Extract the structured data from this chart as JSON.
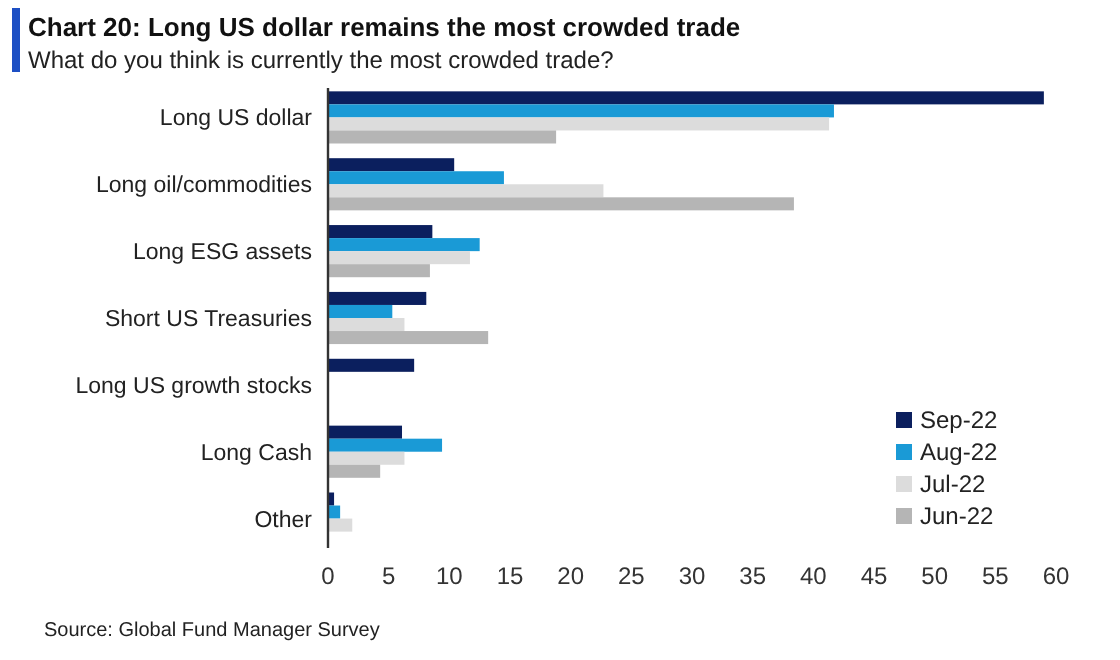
{
  "chart_data": {
    "type": "bar",
    "orientation": "horizontal",
    "title": "Chart 20: Long US dollar remains the most crowded trade",
    "subtitle": "What do you think is currently the most crowded trade?",
    "categories": [
      "Long US dollar",
      "Long oil/commodities",
      "Long ESG assets",
      "Short US Treasuries",
      "Long US growth stocks",
      "Long Cash",
      "Other"
    ],
    "series": [
      {
        "name": "Sep-22",
        "color": "#0b1f5e",
        "values": [
          59,
          10.4,
          8.6,
          8.1,
          7.1,
          6.1,
          0.5
        ]
      },
      {
        "name": "Aug-22",
        "color": "#1a9ad6",
        "values": [
          41.7,
          14.5,
          12.5,
          5.3,
          null,
          9.4,
          1
        ]
      },
      {
        "name": "Jul-22",
        "color": "#dcdcdc",
        "values": [
          41.3,
          22.7,
          11.7,
          6.3,
          null,
          6.3,
          2
        ]
      },
      {
        "name": "Jun-22",
        "color": "#b5b5b5",
        "values": [
          18.8,
          38.4,
          8.4,
          13.2,
          null,
          4.3,
          null
        ]
      }
    ],
    "xlim": [
      0,
      60
    ],
    "xticks": [
      0,
      5,
      10,
      15,
      20,
      25,
      30,
      35,
      40,
      45,
      50,
      55,
      60
    ],
    "grid": false,
    "legend": "bottom right",
    "annotations": [
      "Source: Global Fund Manager Survey"
    ]
  }
}
